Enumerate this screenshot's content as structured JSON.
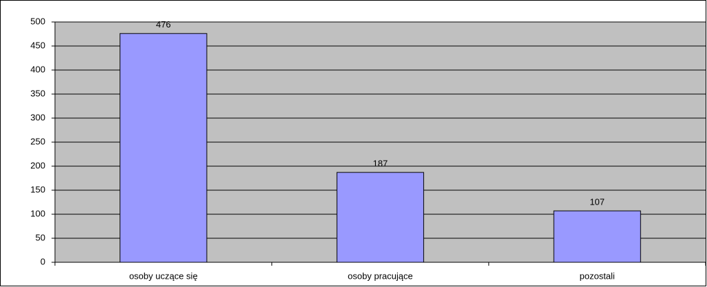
{
  "chart_data": {
    "type": "bar",
    "categories": [
      "osoby uczące się",
      "osoby pracujące",
      "pozostali"
    ],
    "values": [
      476,
      187,
      107
    ],
    "color": "#9999ff",
    "ylim": [
      0,
      500
    ],
    "yticks": [
      0,
      50,
      100,
      150,
      200,
      250,
      300,
      350,
      400,
      450,
      500
    ],
    "grid": true
  }
}
